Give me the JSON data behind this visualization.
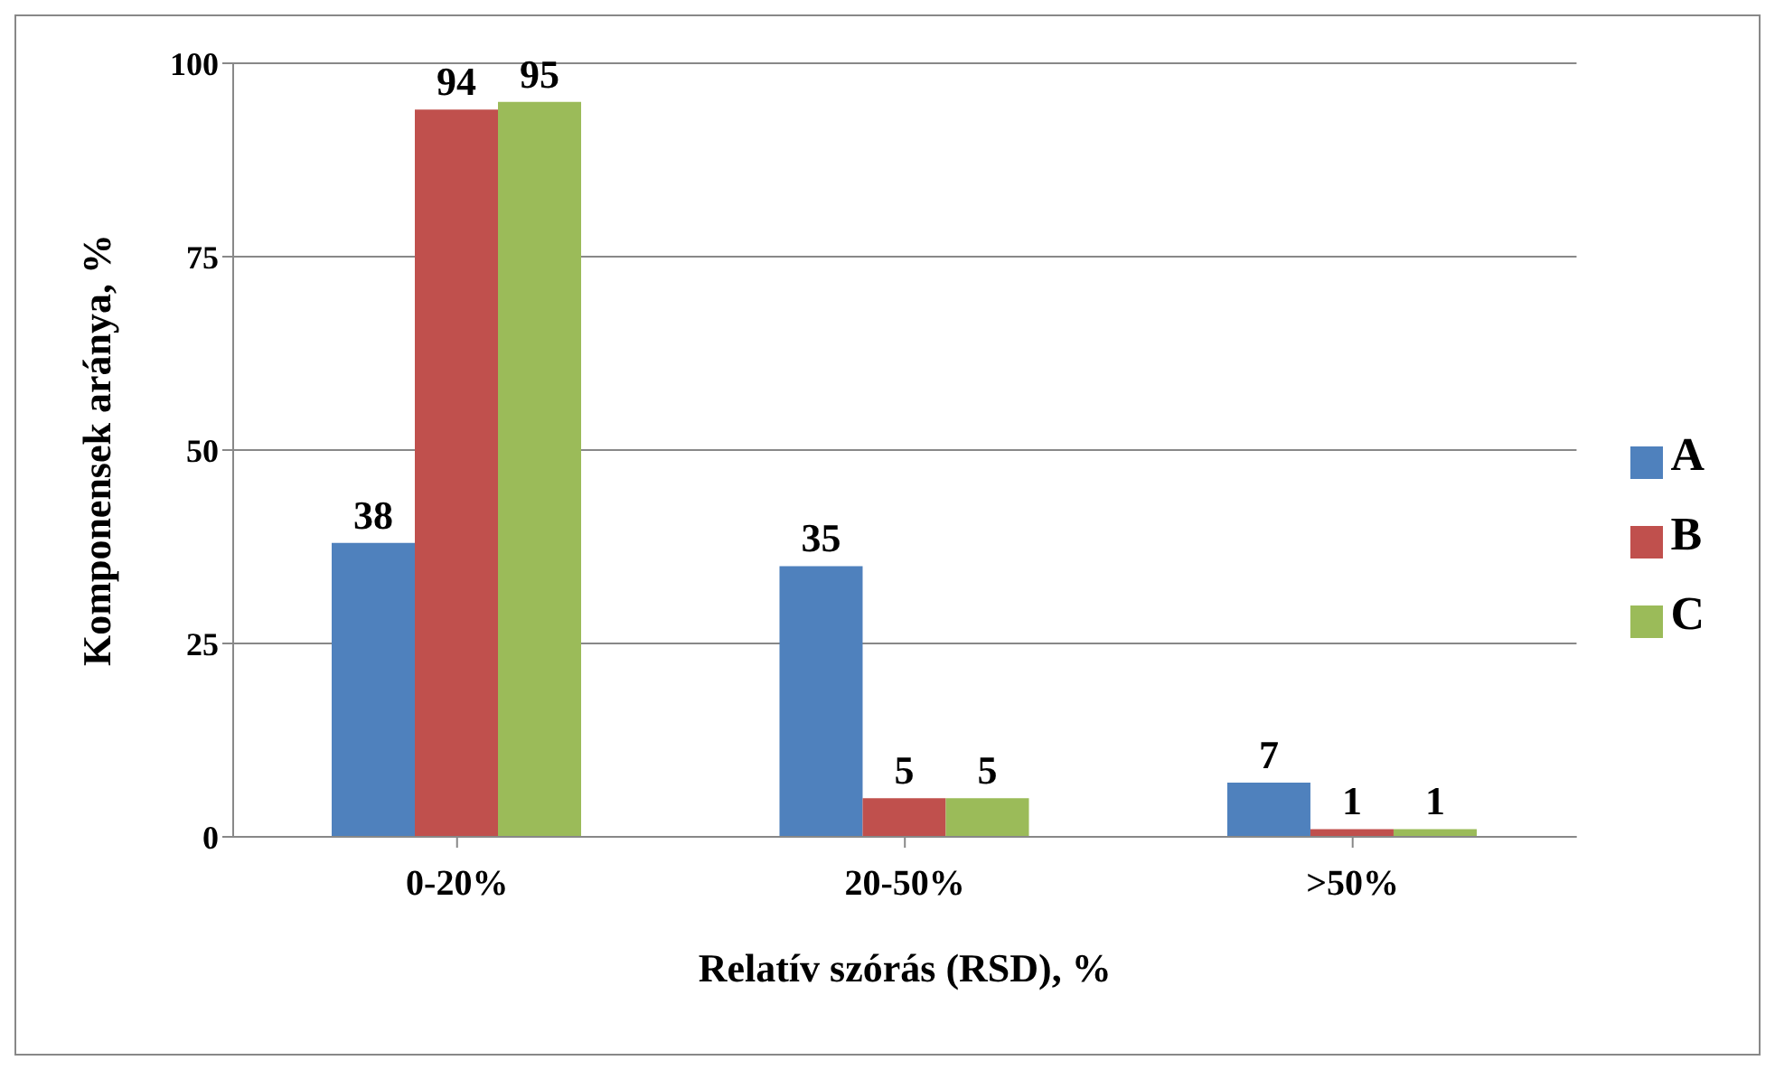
{
  "chart_data": {
    "type": "bar",
    "xlabel": "Relatív szórás (RSD), %",
    "ylabel": "Komponensek aránya, %",
    "categories": [
      "0-20%",
      "20-50%",
      ">50%"
    ],
    "series": [
      {
        "name": "A",
        "color": "#4f81bd",
        "values": [
          38,
          35,
          7
        ]
      },
      {
        "name": "B",
        "color": "#c0504d",
        "values": [
          94,
          5,
          1
        ]
      },
      {
        "name": "C",
        "color": "#9bbb59",
        "values": [
          95,
          5,
          1
        ]
      }
    ],
    "ylim": [
      0,
      100
    ],
    "yticks": [
      0,
      25,
      50,
      75,
      100
    ],
    "grid": "y",
    "legend": "right",
    "data_labels": true
  }
}
